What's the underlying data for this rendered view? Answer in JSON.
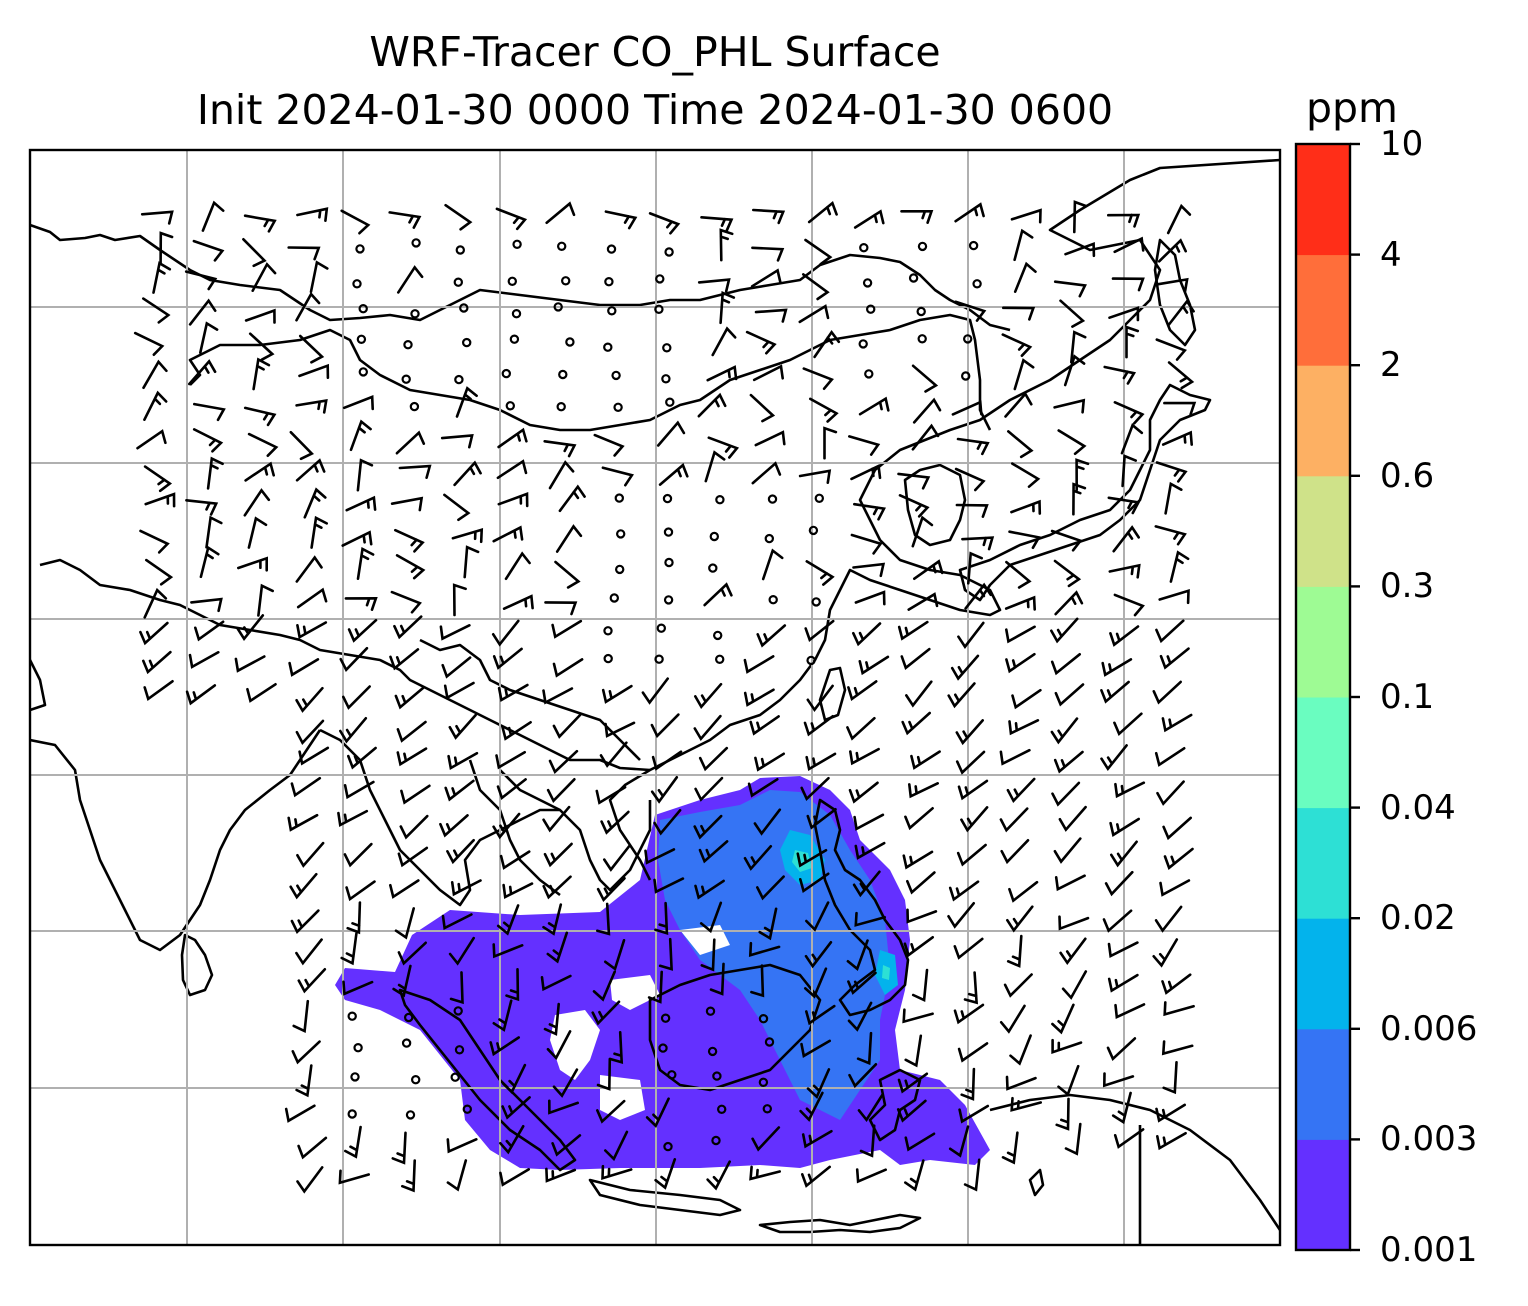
{
  "title": {
    "line1": "WRF-Tracer CO_PHL Surface",
    "line2": "Init 2024-01-30 0000 Time 2024-01-30 0600"
  },
  "colorbar": {
    "unit": "ppm",
    "levels": [
      "0.001",
      "0.003",
      "0.006",
      "0.02",
      "0.04",
      "0.1",
      "0.3",
      "0.6",
      "2",
      "4",
      "10"
    ],
    "colors": [
      "#6430ff",
      "#3574f4",
      "#03b3ec",
      "#2de0d5",
      "#6afdc0",
      "#9efb94",
      "#cfe289",
      "#fdb063",
      "#ff6e3a",
      "#ff2e18"
    ]
  },
  "map": {
    "gridlines": true,
    "features": [
      "coastlines",
      "country-borders",
      "wind-barbs",
      "tracer-concentration-fill"
    ]
  }
}
